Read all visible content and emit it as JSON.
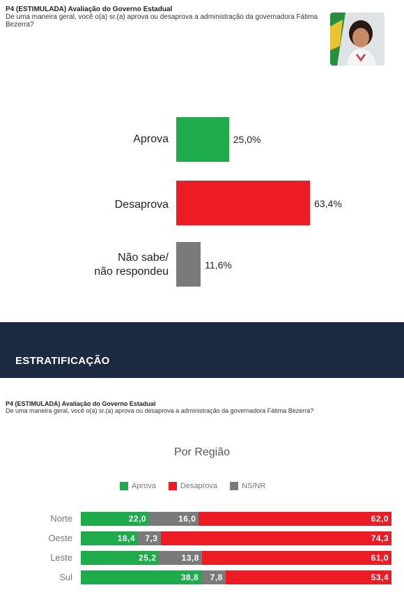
{
  "header": {
    "title_bold": "P4 (ESTIMULADA) Avaliação do Governo Estadual",
    "question": "De uma maneira geral, você o(a) sr.(a) aprova ou desaprova a administração da governadora Fátima Bezerra?"
  },
  "colors": {
    "aprova": "#1faa4b",
    "desaprova": "#ec1b24",
    "nsnr": "#7a7a7a",
    "band": "#1b2a40"
  },
  "main_chart_labels": {
    "aprova": "Aprova",
    "desaprova": "Desaprova",
    "nsnr_line1": "Não sabe/",
    "nsnr_line2": "não respondeu",
    "v_aprova": "25,0%",
    "v_desaprova": "63,4%",
    "v_nsnr": "11,6%"
  },
  "band": {
    "title": "ESTRATIFICAÇÃO"
  },
  "strat": {
    "title_bold": "P4 (ESTIMULADA) Avaliação do Governo Estadual",
    "question": "De uma maneira geral, você o(a) sr.(a) aprova ou desaprova a administração da governadora Fátima Bezerra?",
    "subtitle": "Por Região",
    "legend": [
      "Aprova",
      "Desaprova",
      "NS/NR"
    ],
    "rows": [
      {
        "label": "Norte",
        "aprova": "22,0",
        "nsnr": "16,0",
        "desaprova": "62,0"
      },
      {
        "label": "Oeste",
        "aprova": "18,4",
        "nsnr": "7,3",
        "desaprova": "74,3"
      },
      {
        "label": "Leste",
        "aprova": "25,2",
        "nsnr": "13,8",
        "desaprova": "61,0"
      },
      {
        "label": "Sul",
        "aprova": "38,8",
        "nsnr": "7,8",
        "desaprova": "53,4"
      }
    ]
  },
  "chart_data": [
    {
      "type": "bar",
      "orientation": "horizontal",
      "categories": [
        "Aprova",
        "Desaprova",
        "Não sabe/não respondeu"
      ],
      "values": [
        25.0,
        63.4,
        11.6
      ],
      "title": "",
      "xlabel": "",
      "ylabel": "",
      "grid": false
    },
    {
      "type": "bar",
      "orientation": "horizontal",
      "stacked": true,
      "title": "Por Região",
      "categories": [
        "Norte",
        "Oeste",
        "Leste",
        "Sul"
      ],
      "series": [
        {
          "name": "Aprova",
          "values": [
            22.0,
            18.4,
            25.2,
            38.8
          ]
        },
        {
          "name": "NS/NR",
          "values": [
            16.0,
            7.3,
            13.8,
            7.8
          ]
        },
        {
          "name": "Desaprova",
          "values": [
            62.0,
            74.3,
            61.0,
            53.4
          ]
        }
      ],
      "legend": "top-center",
      "grid": false
    }
  ]
}
